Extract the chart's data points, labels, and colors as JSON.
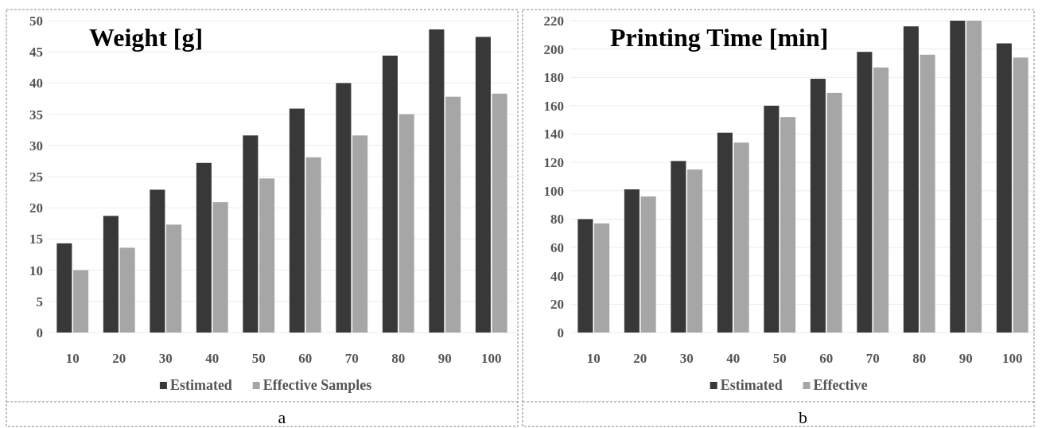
{
  "chart_data": [
    {
      "type": "bar",
      "title": "Weight [g]",
      "categories": [
        "10",
        "20",
        "30",
        "40",
        "50",
        "60",
        "70",
        "80",
        "90",
        "100"
      ],
      "series": [
        {
          "name": "Estimated",
          "color": "#383838",
          "values": [
            14.3,
            18.7,
            22.9,
            27.2,
            31.6,
            35.9,
            40.0,
            44.4,
            48.6,
            47.4
          ]
        },
        {
          "name": "Effective Samples",
          "color": "#a6a6a6",
          "values": [
            10.0,
            13.6,
            17.3,
            20.9,
            24.7,
            28.1,
            31.6,
            35.0,
            37.8,
            38.3
          ]
        }
      ],
      "ylim": [
        0,
        50
      ],
      "yticks": [
        0,
        5,
        10,
        15,
        20,
        25,
        30,
        35,
        40,
        45,
        50
      ],
      "grid": "y",
      "legend": "bottom",
      "annotations": [
        "a"
      ]
    },
    {
      "type": "bar",
      "title": "Printing Time [min]",
      "categories": [
        "10",
        "20",
        "30",
        "40",
        "50",
        "60",
        "70",
        "80",
        "90",
        "100"
      ],
      "series": [
        {
          "name": "Estimated",
          "color": "#383838",
          "values": [
            80,
            101,
            121,
            141,
            160,
            179,
            198,
            216,
            220,
            204
          ]
        },
        {
          "name": "Effective",
          "color": "#a6a6a6",
          "values": [
            77,
            96,
            115,
            134,
            152,
            169,
            187,
            196,
            220,
            194
          ]
        }
      ],
      "ylim": [
        0,
        220
      ],
      "yticks": [
        0,
        20,
        40,
        60,
        80,
        100,
        120,
        140,
        160,
        180,
        200,
        220
      ],
      "grid": "y",
      "legend": "bottom",
      "annotations": [
        "b"
      ]
    }
  ]
}
